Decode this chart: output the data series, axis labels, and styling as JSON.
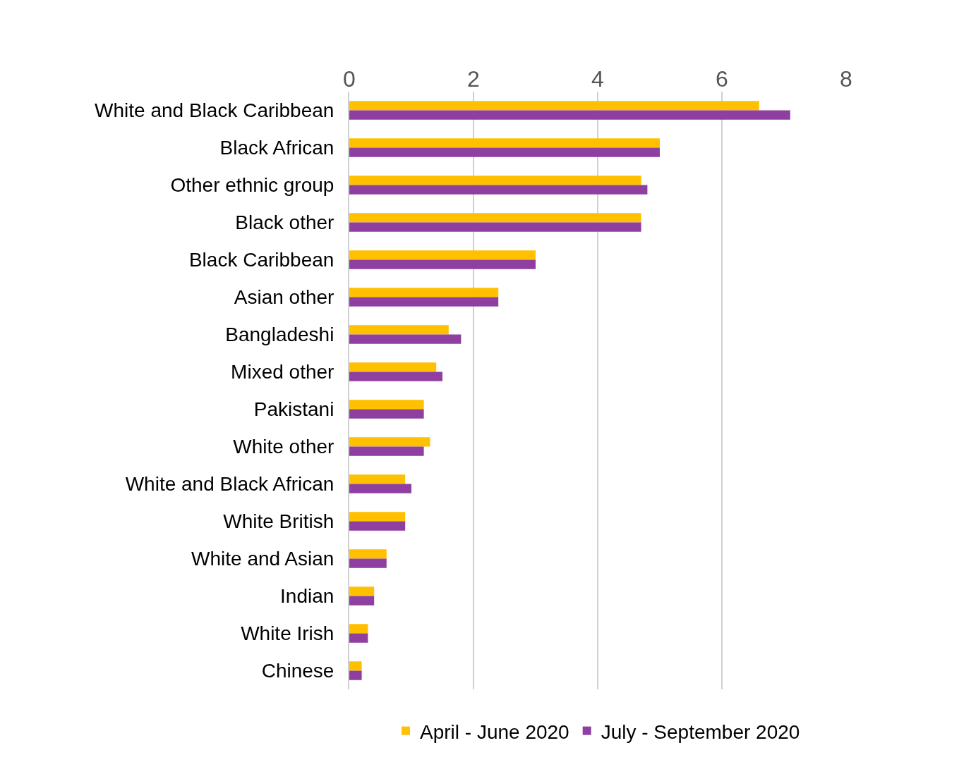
{
  "chart_data": {
    "type": "bar",
    "orientation": "horizontal",
    "categories": [
      "White and Black Caribbean",
      "Black African",
      "Other ethnic group",
      "Black other",
      "Black Caribbean",
      "Asian other",
      "Bangladeshi",
      "Mixed other",
      "Pakistani",
      "White other",
      "White and Black African",
      "White British",
      "White and Asian",
      "Indian",
      "White Irish",
      "Chinese"
    ],
    "series": [
      {
        "name": "April - June 2020",
        "color": "#ffc000",
        "values": [
          6.6,
          5.0,
          4.7,
          4.7,
          3.0,
          2.4,
          1.6,
          1.4,
          1.2,
          1.3,
          0.9,
          0.9,
          0.6,
          0.4,
          0.3,
          0.2
        ]
      },
      {
        "name": "July - September 2020",
        "color": "#8e3fa0",
        "values": [
          7.1,
          5.0,
          4.8,
          4.7,
          3.0,
          2.4,
          1.8,
          1.5,
          1.2,
          1.2,
          1.0,
          0.9,
          0.6,
          0.4,
          0.3,
          0.2
        ]
      }
    ],
    "xlim": [
      0,
      8
    ],
    "xticks": [
      0,
      2,
      4,
      6,
      8
    ],
    "grid": "x",
    "legend": "bottom"
  }
}
